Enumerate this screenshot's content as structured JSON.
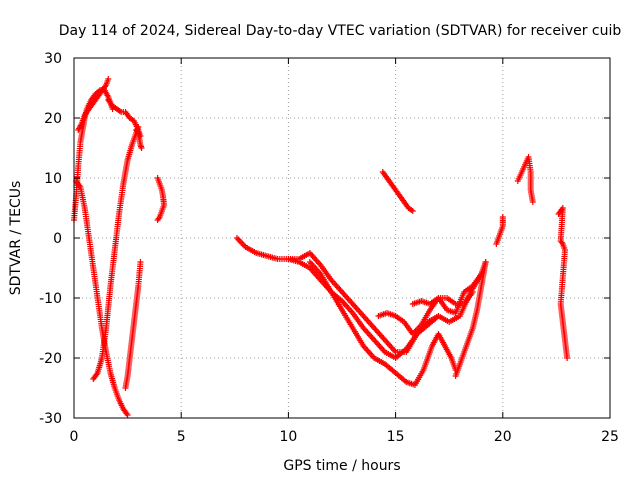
{
  "chart_data": {
    "type": "scatter",
    "title": "Day 114 of 2024, Sidereal Day-to-day VTEC variation (SDTVAR) for receiver cuib",
    "xlabel": "GPS time / hours",
    "ylabel": "SDTVAR / TECUs",
    "xlim": [
      0,
      25
    ],
    "ylim": [
      -30,
      30
    ],
    "xticks": [
      0,
      5,
      10,
      15,
      20,
      25
    ],
    "yticks": [
      -30,
      -20,
      -10,
      0,
      10,
      20,
      30
    ],
    "grid": true,
    "marker": "+",
    "color": "#ff0000",
    "series": [
      {
        "name": "arc-1-rise",
        "x": [
          0.0,
          0.1,
          0.2,
          0.3,
          0.4,
          0.5,
          0.6,
          0.8,
          1.0,
          1.2,
          1.4,
          1.6,
          1.8
        ],
        "y": [
          3,
          7,
          12,
          16,
          18,
          20,
          21.5,
          23,
          24,
          24.6,
          24.8,
          23.5,
          21.5
        ]
      },
      {
        "name": "arc-1-inner",
        "x": [
          0.2,
          0.35,
          0.5,
          0.7,
          0.9,
          1.1,
          1.3,
          1.5,
          1.6
        ],
        "y": [
          18,
          19,
          20.5,
          21.5,
          22.5,
          23.5,
          24.5,
          25.5,
          26.5
        ]
      },
      {
        "name": "arc-1-top",
        "x": [
          1.6,
          1.8,
          2.0,
          2.2,
          2.4,
          2.6,
          2.8,
          3.0,
          3.1
        ],
        "y": [
          23,
          22,
          21.5,
          21,
          21,
          20,
          19.5,
          18,
          17
        ]
      },
      {
        "name": "arc-1-fall",
        "x": [
          0.1,
          0.3,
          0.5,
          0.7,
          0.9,
          1.1,
          1.3,
          1.5,
          1.7,
          1.9,
          2.1,
          2.3,
          2.5
        ],
        "y": [
          9.5,
          8.5,
          5,
          0,
          -5,
          -10,
          -15,
          -19,
          -22.5,
          -25,
          -27,
          -28.5,
          -29.5
        ]
      },
      {
        "name": "arc-2-rise",
        "x": [
          0.9,
          1.1,
          1.3,
          1.5,
          1.7,
          1.9,
          2.1,
          2.3,
          2.5,
          2.7,
          2.9,
          3.0
        ],
        "y": [
          -23.5,
          -22.5,
          -20,
          -15,
          -8,
          -2,
          4,
          9,
          13,
          15.5,
          17.5,
          18.5
        ]
      },
      {
        "name": "arc-2-tail",
        "x": [
          2.4,
          2.5,
          2.6,
          2.7,
          2.8,
          2.9,
          3.0,
          3.1
        ],
        "y": [
          -25,
          -23,
          -20,
          -17,
          -14,
          -11,
          -8,
          -4
        ]
      },
      {
        "name": "arc-1-end",
        "x": [
          2.9,
          3.0,
          3.05,
          3.1,
          3.15
        ],
        "y": [
          18,
          17.5,
          16.5,
          15.5,
          15
        ]
      },
      {
        "name": "arc-3",
        "x": [
          3.9,
          4.0,
          4.1,
          4.15,
          4.2,
          4.1,
          4.0,
          3.9
        ],
        "y": [
          10,
          9,
          8,
          7,
          5.5,
          4.5,
          3.5,
          3
        ]
      },
      {
        "name": "arc-4-main",
        "x": [
          7.6,
          8.0,
          8.5,
          9.0,
          9.5,
          10.0,
          10.5,
          11.0,
          11.5,
          12.0,
          12.5,
          13.0,
          13.5,
          14.0,
          14.5,
          15.0,
          15.5,
          15.9,
          16.3,
          16.7,
          17.0,
          17.3,
          17.6,
          17.8
        ],
        "y": [
          0,
          -1.5,
          -2.5,
          -3,
          -3.5,
          -3.5,
          -4,
          -5,
          -7,
          -9,
          -12,
          -15,
          -18,
          -20,
          -21,
          -22.5,
          -24,
          -24.5,
          -22,
          -18,
          -16,
          -18,
          -20,
          -22
        ]
      },
      {
        "name": "arc-4-upper",
        "x": [
          10.0,
          10.5,
          11.0,
          11.5,
          12.0,
          12.5,
          13.0,
          13.5,
          14.0,
          14.5,
          15.0,
          15.5,
          16.0,
          16.5,
          17.0
        ],
        "y": [
          -3.5,
          -3.5,
          -2.5,
          -4.5,
          -7,
          -9,
          -11,
          -13,
          -15,
          -17,
          -19,
          -19,
          -16,
          -14,
          -13
        ]
      },
      {
        "name": "arc-4-lower",
        "x": [
          11.0,
          11.5,
          12.0,
          12.5,
          13.0,
          13.5,
          14.0,
          14.5,
          15.0,
          15.5,
          16.0,
          16.5,
          17.0,
          17.5,
          18.0,
          18.5,
          19.0
        ],
        "y": [
          -4,
          -6,
          -9,
          -10.5,
          -12.5,
          -15,
          -17,
          -19,
          -20,
          -18.5,
          -16,
          -14.5,
          -13,
          -14,
          -13,
          -9,
          -6
        ]
      },
      {
        "name": "arc-4-right",
        "x": [
          14.2,
          14.6,
          15.0,
          15.4,
          15.8,
          16.2,
          16.6,
          17.0,
          17.4,
          17.8,
          18.2,
          18.6,
          19.0,
          19.2
        ],
        "y": [
          -13,
          -12.5,
          -13,
          -14,
          -16,
          -14.5,
          -12,
          -10,
          -12,
          -12.5,
          -9,
          -8,
          -6,
          -4
        ]
      },
      {
        "name": "arc-4-shelf",
        "x": [
          15.8,
          16.2,
          16.6,
          17.0,
          17.4,
          17.8,
          18.2,
          18.6
        ],
        "y": [
          -11,
          -10.5,
          -11,
          -10,
          -10,
          -11,
          -11,
          -9
        ]
      },
      {
        "name": "arc-4-v",
        "x": [
          17.8,
          18.0,
          18.2,
          18.4,
          18.6,
          18.8,
          19.0,
          19.2
        ],
        "y": [
          -23,
          -21,
          -19,
          -17,
          -15,
          -12,
          -8,
          -4
        ]
      },
      {
        "name": "arc-5",
        "x": [
          14.4,
          14.6,
          14.8,
          15.0,
          15.2,
          15.4,
          15.6,
          15.8
        ],
        "y": [
          11,
          10,
          9,
          8,
          7,
          6,
          5,
          4.5
        ]
      },
      {
        "name": "arc-6",
        "x": [
          19.7,
          19.8,
          19.9,
          20.0,
          20.0
        ],
        "y": [
          -1,
          0,
          1,
          2,
          3.5
        ]
      },
      {
        "name": "arc-7",
        "x": [
          20.7,
          21.2,
          21.3,
          21.3,
          21.4
        ],
        "y": [
          9.5,
          13.5,
          11,
          8,
          6
        ]
      },
      {
        "name": "arc-8",
        "x": [
          22.6,
          22.7,
          22.8,
          22.7,
          22.8,
          22.9,
          22.7,
          22.8,
          22.9,
          23.0
        ],
        "y": [
          4,
          4.5,
          5,
          -0.5,
          -1,
          -2,
          -11,
          -14,
          -17,
          -20
        ]
      }
    ]
  }
}
